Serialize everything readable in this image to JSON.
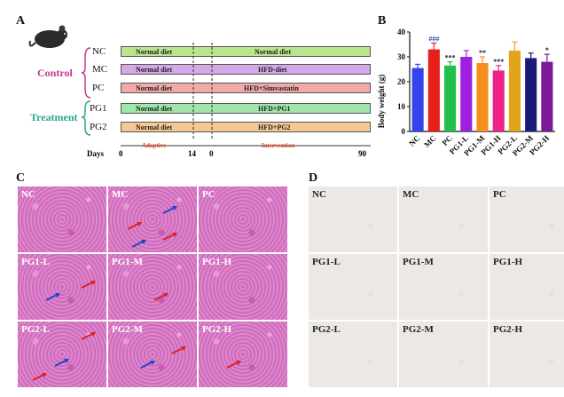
{
  "panels": {
    "a": "A",
    "b": "B",
    "c": "C",
    "d": "D"
  },
  "panel_a": {
    "group_control": "Control",
    "group_treatment": "Treatment",
    "rows": [
      {
        "label": "NC",
        "adaptive": "Normal diet",
        "intervention": "Normal diet",
        "color": "#b9e68d"
      },
      {
        "label": "MC",
        "adaptive": "Normal diet",
        "intervention": "HFD-diet",
        "color": "#d5a8e8"
      },
      {
        "label": "PC",
        "adaptive": "Normal diet",
        "intervention": "HFD+Simvastatin",
        "color": "#f2aaa8"
      },
      {
        "label": "PG1",
        "adaptive": "Normal diet",
        "intervention": "HFD+PG1",
        "color": "#9fe6a8"
      },
      {
        "label": "PG2",
        "adaptive": "Normal diet",
        "intervention": "HFD+PG2",
        "color": "#f5c893"
      }
    ],
    "timeline": {
      "days_label": "Days",
      "ticks": [
        "0",
        "14",
        "0",
        "90"
      ],
      "phase_adaptive": "Adaptive",
      "phase_intervention": "Intervention"
    },
    "colors": {
      "control": "#c4398f",
      "treatment": "#2aa68e",
      "phase": "#d9442b"
    }
  },
  "chart_data": {
    "type": "bar",
    "ylabel": "Body weight (g)",
    "ylim": [
      0,
      40
    ],
    "yticks": [
      0,
      10,
      20,
      30,
      40
    ],
    "categories": [
      "NC",
      "MC",
      "PC",
      "PG1-L",
      "PG1-M",
      "PG1-H",
      "PG2-L",
      "PG2-M",
      "PG2-H"
    ],
    "values": [
      25.5,
      33,
      26.5,
      30,
      27.5,
      24.5,
      32.5,
      29.5,
      28
    ],
    "errors": [
      1.5,
      2.5,
      1.5,
      2.5,
      2.5,
      2,
      3.5,
      2,
      3
    ],
    "colors": [
      "#3344ee",
      "#e8201a",
      "#22c04a",
      "#a020e0",
      "#f5901c",
      "#ee2288",
      "#e0a51a",
      "#1a1a7a",
      "#7a1a9a"
    ],
    "annotations": [
      "",
      "###",
      "***",
      "",
      "**",
      "***",
      "",
      "",
      "*"
    ]
  },
  "panel_c": {
    "tiles": [
      "NC",
      "MC",
      "PC",
      "PG1-L",
      "PG1-M",
      "PG1-H",
      "PG2-L",
      "PG2-M",
      "PG2-H"
    ]
  },
  "panel_d": {
    "tiles": [
      "NC",
      "MC",
      "PC",
      "PG1-L",
      "PG1-M",
      "PG1-H",
      "PG2-L",
      "PG2-M",
      "PG2-H"
    ]
  }
}
